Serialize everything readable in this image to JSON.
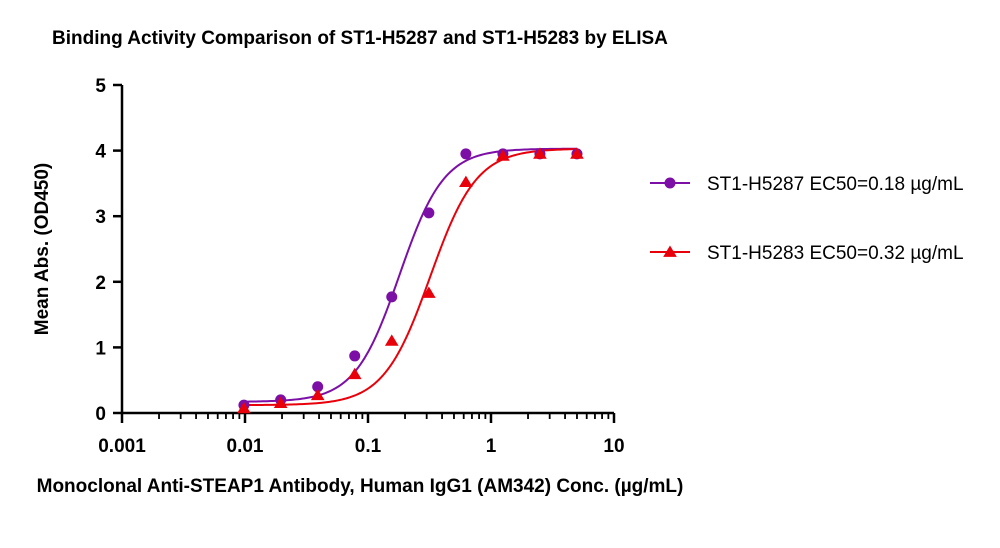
{
  "chart_data": {
    "type": "scatter",
    "title": "Binding Activity Comparison of ST1-H5287 and ST1-H5283 by ELISA",
    "xlabel": "Monoclonal Anti-STEAP1 Antibody, Human IgG1 (AM342) Conc. (µg/mL)",
    "ylabel": "Mean Abs. (OD450)",
    "x_scale": "log",
    "xlim": [
      0.001,
      10
    ],
    "ylim": [
      0,
      5
    ],
    "x_ticks": [
      "0.001",
      "0.01",
      "0.1",
      "1",
      "10"
    ],
    "y_ticks": [
      "0",
      "1",
      "2",
      "3",
      "4",
      "5"
    ],
    "grid": false,
    "legend_position": "right",
    "series": [
      {
        "name": "ST1-H5287 EC50=0.18 µg/mL",
        "marker": "circle",
        "color": "#7b0fa6",
        "ec50": 0.18,
        "x": [
          0.0098,
          0.0195,
          0.039,
          0.078,
          0.156,
          0.3125,
          0.625,
          1.25,
          2.5,
          5
        ],
        "y": [
          0.12,
          0.2,
          0.4,
          0.87,
          1.77,
          3.05,
          3.95,
          3.95,
          3.95,
          3.95
        ],
        "curve": {
          "bottom": 0.17,
          "top": 4.03,
          "ec50": 0.18,
          "hill": 2.4
        }
      },
      {
        "name": "ST1-H5283 EC50=0.32 µg/mL",
        "marker": "triangle",
        "color": "#e8000b",
        "ec50": 0.32,
        "x": [
          0.0098,
          0.0195,
          0.039,
          0.078,
          0.156,
          0.3125,
          0.625,
          1.25,
          2.5,
          5
        ],
        "y": [
          0.07,
          0.15,
          0.27,
          0.59,
          1.1,
          1.83,
          3.52,
          3.92,
          3.95,
          3.95
        ],
        "curve": {
          "bottom": 0.12,
          "top": 4.03,
          "ec50": 0.32,
          "hill": 2.3
        }
      }
    ]
  }
}
